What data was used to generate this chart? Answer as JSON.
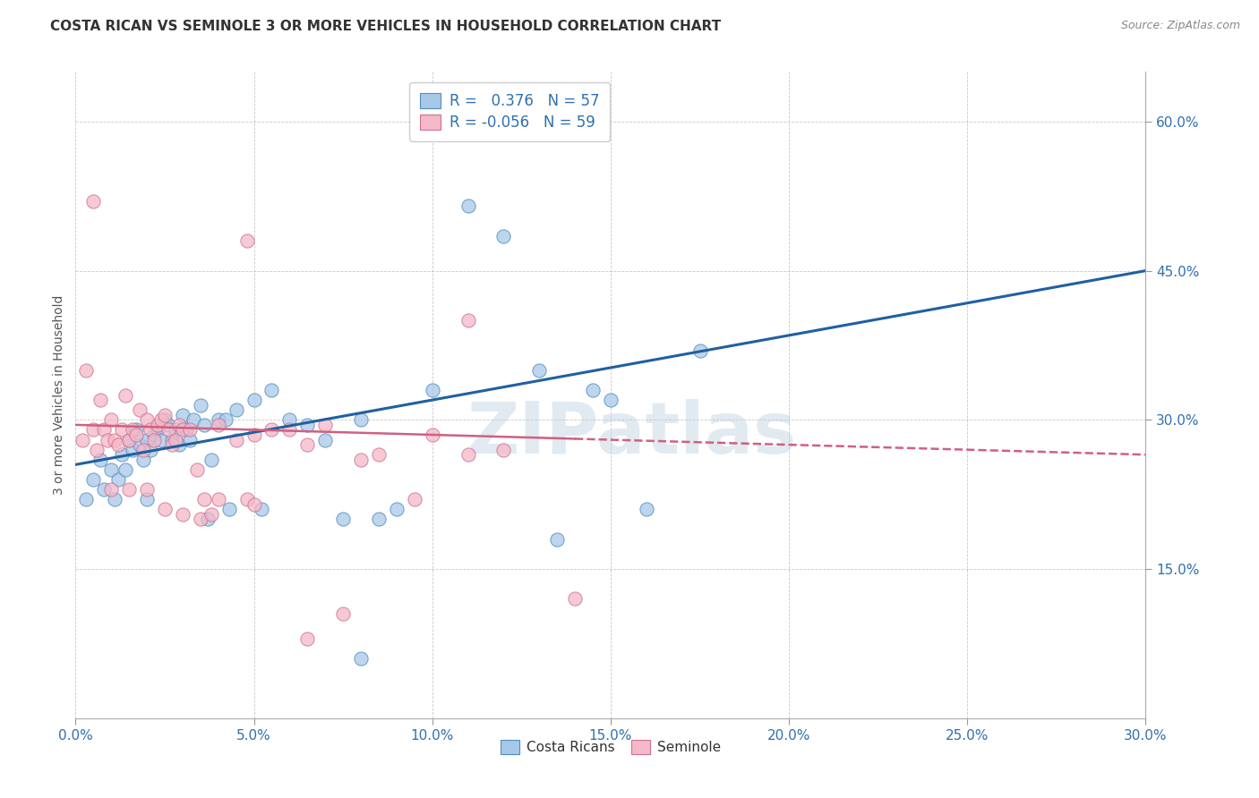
{
  "title": "COSTA RICAN VS SEMINOLE 3 OR MORE VEHICLES IN HOUSEHOLD CORRELATION CHART",
  "source": "Source: ZipAtlas.com",
  "ylabel": "3 or more Vehicles in Household",
  "xlim": [
    0.0,
    30.0
  ],
  "ylim": [
    0.0,
    65.0
  ],
  "yticks": [
    15.0,
    30.0,
    45.0,
    60.0
  ],
  "xticks": [
    0.0,
    5.0,
    10.0,
    15.0,
    20.0,
    25.0,
    30.0
  ],
  "legend_label_blue": "Costa Ricans",
  "legend_label_pink": "Seminole",
  "blue_color": "#a8c8e8",
  "pink_color": "#f4b8c8",
  "blue_edge_color": "#4f8fbf",
  "pink_edge_color": "#d07090",
  "blue_line_color": "#2060a0",
  "pink_line_color": "#d06080",
  "watermark": "ZIPatlas",
  "blue_scatter": [
    [
      0.3,
      22.0
    ],
    [
      0.5,
      24.0
    ],
    [
      0.7,
      26.0
    ],
    [
      0.8,
      23.0
    ],
    [
      1.0,
      25.0
    ],
    [
      1.1,
      22.0
    ],
    [
      1.2,
      24.0
    ],
    [
      1.3,
      26.5
    ],
    [
      1.4,
      25.0
    ],
    [
      1.5,
      28.0
    ],
    [
      1.6,
      27.0
    ],
    [
      1.7,
      29.0
    ],
    [
      1.8,
      27.5
    ],
    [
      1.9,
      26.0
    ],
    [
      2.0,
      28.0
    ],
    [
      2.0,
      22.0
    ],
    [
      2.1,
      27.0
    ],
    [
      2.2,
      28.5
    ],
    [
      2.3,
      29.0
    ],
    [
      2.4,
      28.0
    ],
    [
      2.5,
      30.0
    ],
    [
      2.6,
      29.5
    ],
    [
      2.7,
      28.0
    ],
    [
      2.8,
      29.0
    ],
    [
      2.9,
      27.5
    ],
    [
      3.0,
      30.5
    ],
    [
      3.1,
      29.0
    ],
    [
      3.2,
      28.0
    ],
    [
      3.3,
      30.0
    ],
    [
      3.5,
      31.5
    ],
    [
      3.6,
      29.5
    ],
    [
      3.7,
      20.0
    ],
    [
      3.8,
      26.0
    ],
    [
      4.0,
      30.0
    ],
    [
      4.2,
      30.0
    ],
    [
      4.3,
      21.0
    ],
    [
      4.5,
      31.0
    ],
    [
      5.0,
      32.0
    ],
    [
      5.2,
      21.0
    ],
    [
      5.5,
      33.0
    ],
    [
      6.0,
      30.0
    ],
    [
      6.5,
      29.5
    ],
    [
      7.0,
      28.0
    ],
    [
      7.5,
      20.0
    ],
    [
      8.0,
      30.0
    ],
    [
      8.0,
      6.0
    ],
    [
      8.5,
      20.0
    ],
    [
      9.0,
      21.0
    ],
    [
      10.0,
      33.0
    ],
    [
      11.0,
      51.5
    ],
    [
      12.0,
      48.5
    ],
    [
      13.0,
      35.0
    ],
    [
      13.5,
      18.0
    ],
    [
      14.5,
      33.0
    ],
    [
      15.0,
      32.0
    ],
    [
      16.0,
      21.0
    ],
    [
      17.5,
      37.0
    ]
  ],
  "pink_scatter": [
    [
      0.2,
      28.0
    ],
    [
      0.3,
      35.0
    ],
    [
      0.5,
      29.0
    ],
    [
      0.5,
      52.0
    ],
    [
      0.6,
      27.0
    ],
    [
      0.7,
      32.0
    ],
    [
      0.8,
      29.0
    ],
    [
      0.9,
      28.0
    ],
    [
      1.0,
      30.0
    ],
    [
      1.0,
      23.0
    ],
    [
      1.1,
      28.0
    ],
    [
      1.2,
      27.5
    ],
    [
      1.3,
      29.0
    ],
    [
      1.4,
      32.5
    ],
    [
      1.5,
      28.0
    ],
    [
      1.5,
      23.0
    ],
    [
      1.6,
      29.0
    ],
    [
      1.7,
      28.5
    ],
    [
      1.8,
      31.0
    ],
    [
      1.9,
      27.0
    ],
    [
      2.0,
      30.0
    ],
    [
      2.0,
      23.0
    ],
    [
      2.1,
      29.0
    ],
    [
      2.2,
      28.0
    ],
    [
      2.3,
      29.5
    ],
    [
      2.4,
      30.0
    ],
    [
      2.5,
      30.5
    ],
    [
      2.5,
      21.0
    ],
    [
      2.6,
      29.0
    ],
    [
      2.7,
      27.5
    ],
    [
      2.8,
      28.0
    ],
    [
      2.9,
      29.5
    ],
    [
      3.0,
      29.0
    ],
    [
      3.0,
      20.5
    ],
    [
      3.2,
      29.0
    ],
    [
      3.4,
      25.0
    ],
    [
      3.5,
      20.0
    ],
    [
      3.6,
      22.0
    ],
    [
      3.8,
      20.5
    ],
    [
      4.0,
      29.5
    ],
    [
      4.0,
      22.0
    ],
    [
      4.5,
      28.0
    ],
    [
      4.8,
      48.0
    ],
    [
      4.8,
      22.0
    ],
    [
      5.0,
      28.5
    ],
    [
      5.0,
      21.5
    ],
    [
      5.5,
      29.0
    ],
    [
      6.0,
      29.0
    ],
    [
      6.5,
      27.5
    ],
    [
      6.5,
      8.0
    ],
    [
      7.0,
      29.5
    ],
    [
      7.5,
      10.5
    ],
    [
      8.0,
      26.0
    ],
    [
      8.5,
      26.5
    ],
    [
      9.5,
      22.0
    ],
    [
      10.0,
      28.5
    ],
    [
      11.0,
      26.5
    ],
    [
      11.0,
      40.0
    ],
    [
      12.0,
      27.0
    ],
    [
      14.0,
      12.0
    ]
  ],
  "blue_trend_x": [
    0.0,
    30.0
  ],
  "blue_trend_y": [
    25.5,
    45.0
  ],
  "pink_trend_x": [
    0.0,
    30.0
  ],
  "pink_trend_y": [
    29.5,
    26.5
  ],
  "pink_solid_end_x": 14.0
}
